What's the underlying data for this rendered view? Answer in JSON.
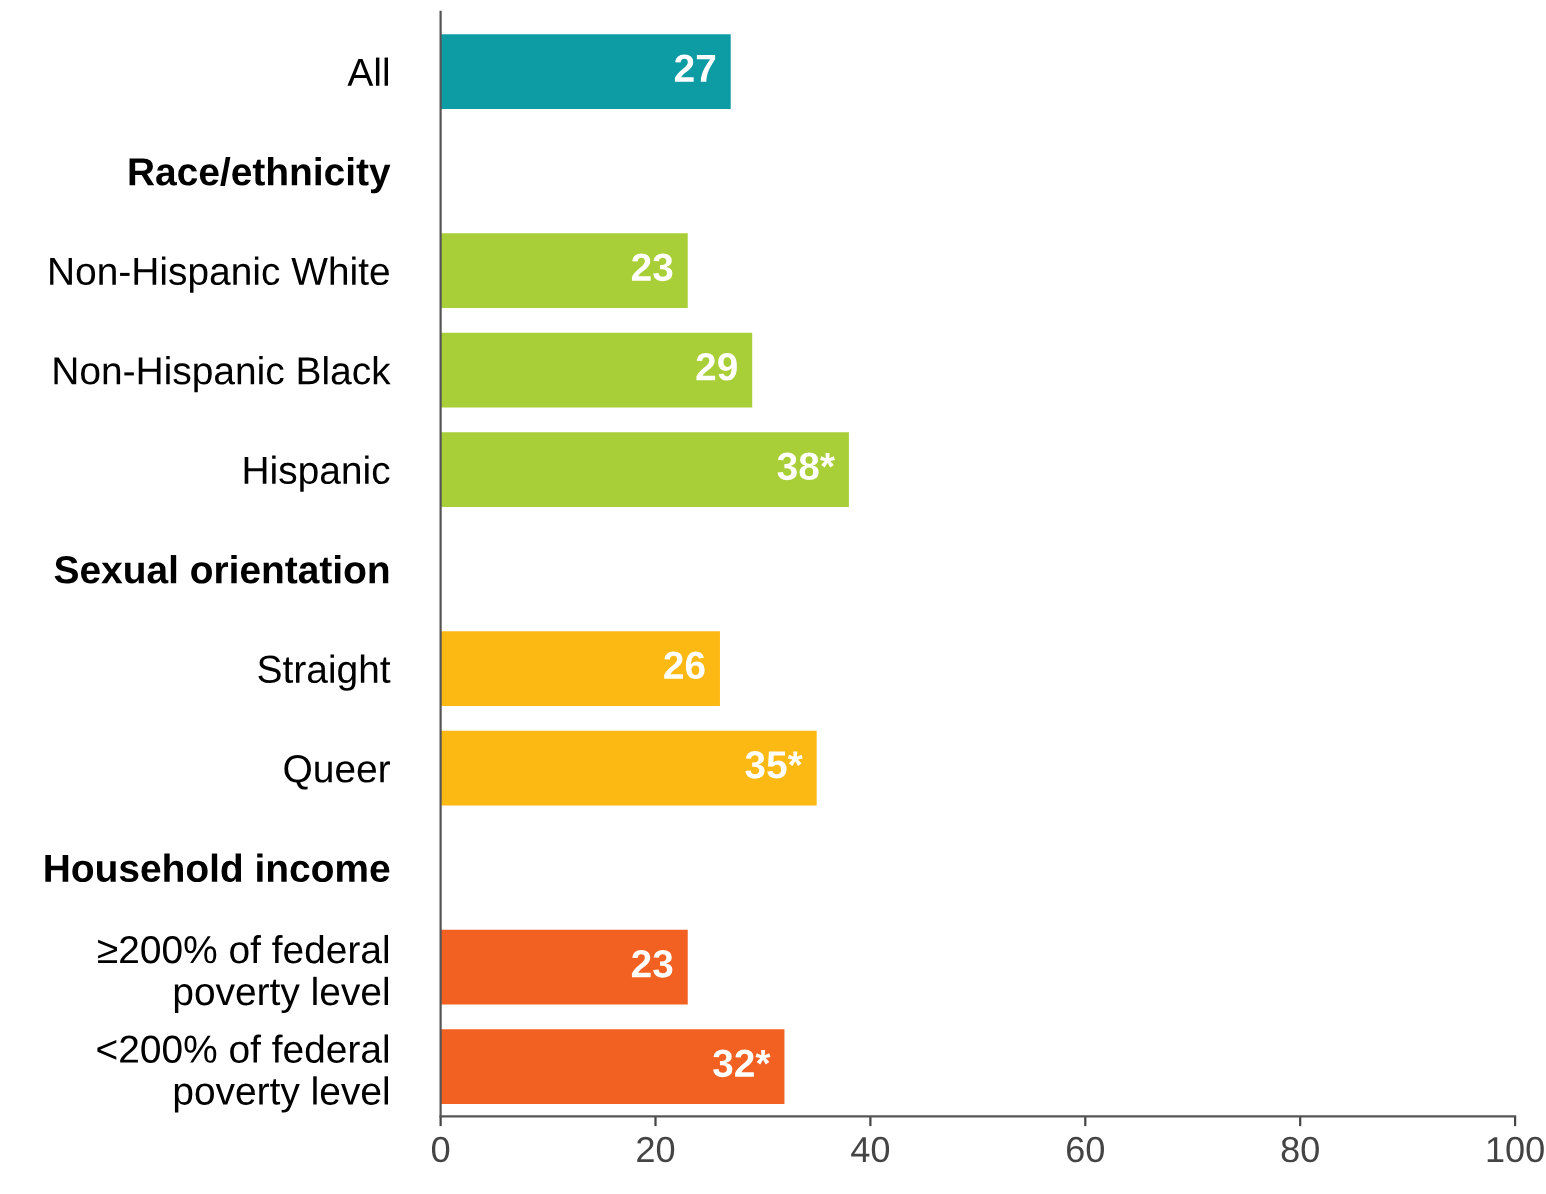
{
  "chart_data": {
    "type": "bar",
    "orientation": "horizontal",
    "categories": [
      "All",
      "Race/ethnicity",
      "Non-Hispanic White",
      "Non-Hispanic Black",
      "Hispanic",
      "Sexual orientation",
      "Straight",
      "Queer",
      "Household income",
      "≥200% of federal\npoverty level",
      "<200% of federal\npoverty level"
    ],
    "values": [
      27,
      null,
      23,
      29,
      38,
      null,
      26,
      35,
      null,
      23,
      32
    ],
    "colors": [
      "#0e9ca4",
      null,
      "#a8cf38",
      "#a8cf38",
      "#a8cf38",
      null,
      "#fdb913",
      "#fdb913",
      null,
      "#f26122",
      "#f26122"
    ],
    "value_labels": [
      "27",
      null,
      "23",
      "29",
      "38*",
      null,
      "26",
      "35*",
      null,
      "23",
      "32*"
    ],
    "xlim": [
      0,
      100
    ],
    "xticks": [
      0,
      20,
      40,
      60,
      80,
      100
    ],
    "grid": false
  }
}
